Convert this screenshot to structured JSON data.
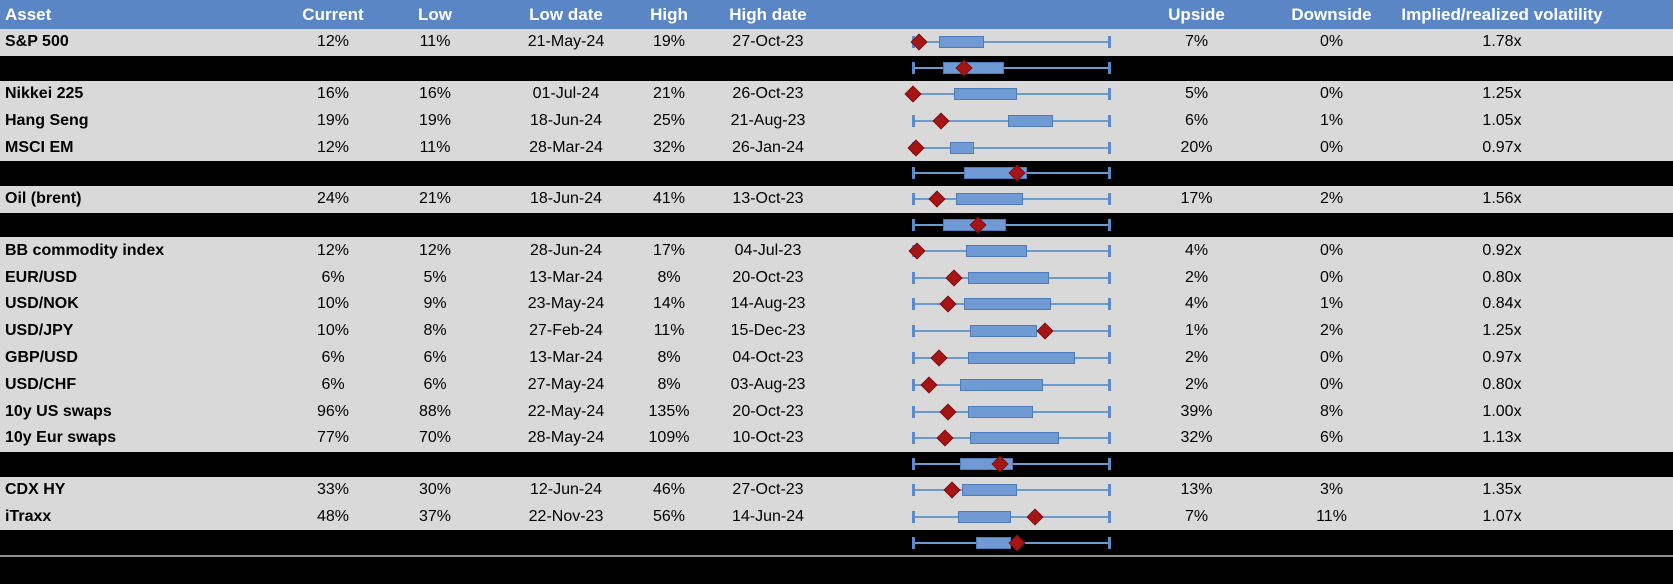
{
  "colors": {
    "header_bg": "#5a86c6",
    "header_text": "#ffffff",
    "row_bg": "#d9d9d9",
    "band_bg": "#000000",
    "whisker_blue": "#6d9ace",
    "box_fill": "#6f9ad3",
    "box_border": "#4f7cb8",
    "marker_red": "#a51515",
    "separator_gray": "#8f8f8f"
  },
  "chart_data": {
    "type": "table",
    "note_embedded_plots": "each row shows a box plot of volatility range (whisker = low to high) with a red diamond marking current level; marker and box values are fractions 0-1 of the whisker span",
    "columns": [
      "Asset",
      "Current",
      "Low",
      "Low date",
      "High",
      "High date",
      "",
      "Upside",
      "Downside",
      "Implied/realized volatility"
    ],
    "rows": [
      {
        "type": "data",
        "asset": "S&P 500",
        "current": "12%",
        "low": "11%",
        "low_date": "21-May-24",
        "high": "19%",
        "high_date": "27-Oct-23",
        "upside": "7%",
        "downside": "0%",
        "impl_real": "1.78x",
        "plot": {
          "marker": 0.03,
          "box": [
            0.13,
            0.36
          ]
        }
      },
      {
        "type": "band",
        "plot": {
          "marker": 0.26,
          "box": [
            0.15,
            0.46
          ]
        }
      },
      {
        "type": "data",
        "asset": "Nikkei 225",
        "current": "16%",
        "low": "16%",
        "low_date": "01-Jul-24",
        "high": "21%",
        "high_date": "26-Oct-23",
        "upside": "5%",
        "downside": "0%",
        "impl_real": "1.25x",
        "plot": {
          "marker": 0.0,
          "box": [
            0.21,
            0.53
          ]
        }
      },
      {
        "type": "data",
        "asset": "Hang Seng",
        "current": "19%",
        "low": "19%",
        "low_date": "18-Jun-24",
        "high": "25%",
        "high_date": "21-Aug-23",
        "upside": "6%",
        "downside": "1%",
        "impl_real": "1.05x",
        "plot": {
          "marker": 0.14,
          "box": [
            0.48,
            0.71
          ]
        }
      },
      {
        "type": "data",
        "asset": "MSCI EM",
        "current": "12%",
        "low": "11%",
        "low_date": "28-Mar-24",
        "high": "32%",
        "high_date": "26-Jan-24",
        "upside": "20%",
        "downside": "0%",
        "impl_real": "0.97x",
        "plot": {
          "marker": 0.015,
          "box": [
            0.19,
            0.31
          ]
        }
      },
      {
        "type": "band",
        "plot": {
          "marker": 0.53,
          "box": [
            0.26,
            0.58
          ]
        }
      },
      {
        "type": "data",
        "asset": "Oil (brent)",
        "current": "24%",
        "low": "21%",
        "low_date": "18-Jun-24",
        "high": "41%",
        "high_date": "13-Oct-23",
        "upside": "17%",
        "downside": "2%",
        "impl_real": "1.56x",
        "plot": {
          "marker": 0.12,
          "box": [
            0.22,
            0.56
          ]
        }
      },
      {
        "type": "band",
        "plot": {
          "marker": 0.33,
          "box": [
            0.15,
            0.47
          ]
        }
      },
      {
        "type": "data",
        "asset": "BB commodity index",
        "current": "12%",
        "low": "12%",
        "low_date": "28-Jun-24",
        "high": "17%",
        "high_date": "04-Jul-23",
        "upside": "4%",
        "downside": "0%",
        "impl_real": "0.92x",
        "plot": {
          "marker": 0.02,
          "box": [
            0.27,
            0.58
          ]
        }
      },
      {
        "type": "data",
        "asset": "EUR/USD",
        "current": "6%",
        "low": "5%",
        "low_date": "13-Mar-24",
        "high": "8%",
        "high_date": "20-Oct-23",
        "upside": "2%",
        "downside": "0%",
        "impl_real": "0.80x",
        "plot": {
          "marker": 0.21,
          "box": [
            0.28,
            0.69
          ]
        }
      },
      {
        "type": "data",
        "asset": "USD/NOK",
        "current": "10%",
        "low": "9%",
        "low_date": "23-May-24",
        "high": "14%",
        "high_date": "14-Aug-23",
        "upside": "4%",
        "downside": "1%",
        "impl_real": "0.84x",
        "plot": {
          "marker": 0.18,
          "box": [
            0.26,
            0.7
          ]
        }
      },
      {
        "type": "data",
        "asset": "USD/JPY",
        "current": "10%",
        "low": "8%",
        "low_date": "27-Feb-24",
        "high": "11%",
        "high_date": "15-Dec-23",
        "upside": "1%",
        "downside": "2%",
        "impl_real": "1.25x",
        "plot": {
          "marker": 0.67,
          "box": [
            0.29,
            0.63
          ]
        }
      },
      {
        "type": "data",
        "asset": "GBP/USD",
        "current": "6%",
        "low": "6%",
        "low_date": "13-Mar-24",
        "high": "8%",
        "high_date": "04-Oct-23",
        "upside": "2%",
        "downside": "0%",
        "impl_real": "0.97x",
        "plot": {
          "marker": 0.13,
          "box": [
            0.28,
            0.82
          ]
        }
      },
      {
        "type": "data",
        "asset": "USD/CHF",
        "current": "6%",
        "low": "6%",
        "low_date": "27-May-24",
        "high": "8%",
        "high_date": "03-Aug-23",
        "upside": "2%",
        "downside": "0%",
        "impl_real": "0.80x",
        "plot": {
          "marker": 0.08,
          "box": [
            0.24,
            0.66
          ]
        }
      },
      {
        "type": "data",
        "asset": "10y US swaps",
        "current": "96%",
        "low": "88%",
        "low_date": "22-May-24",
        "high": "135%",
        "high_date": "20-Oct-23",
        "upside": "39%",
        "downside": "8%",
        "impl_real": "1.00x",
        "plot": {
          "marker": 0.18,
          "box": [
            0.28,
            0.61
          ]
        }
      },
      {
        "type": "data",
        "asset": "10y Eur swaps",
        "current": "77%",
        "low": "70%",
        "low_date": "28-May-24",
        "high": "109%",
        "high_date": "10-Oct-23",
        "upside": "32%",
        "downside": "6%",
        "impl_real": "1.13x",
        "plot": {
          "marker": 0.16,
          "box": [
            0.29,
            0.74
          ]
        }
      },
      {
        "type": "band",
        "plot": {
          "marker": 0.44,
          "box": [
            0.24,
            0.51
          ]
        }
      },
      {
        "type": "data",
        "asset": "CDX HY",
        "current": "33%",
        "low": "30%",
        "low_date": "12-Jun-24",
        "high": "46%",
        "high_date": "27-Oct-23",
        "upside": "13%",
        "downside": "3%",
        "impl_real": "1.35x",
        "plot": {
          "marker": 0.2,
          "box": [
            0.25,
            0.53
          ]
        }
      },
      {
        "type": "data",
        "asset": "iTraxx",
        "current": "48%",
        "low": "37%",
        "low_date": "22-Nov-23",
        "high": "56%",
        "high_date": "14-Jun-24",
        "upside": "7%",
        "downside": "11%",
        "impl_real": "1.07x",
        "plot": {
          "marker": 0.62,
          "box": [
            0.23,
            0.5
          ]
        }
      },
      {
        "type": "band",
        "plot": {
          "marker": 0.53,
          "box": [
            0.32,
            0.5
          ]
        }
      },
      {
        "type": "separator"
      },
      {
        "type": "footer"
      }
    ]
  }
}
